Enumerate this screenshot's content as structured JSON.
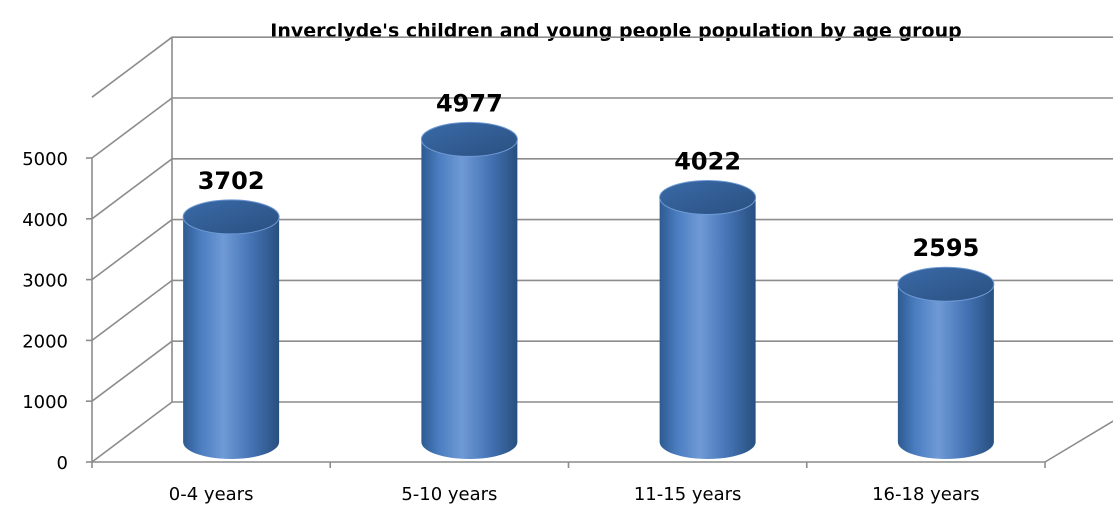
{
  "chart_data": {
    "type": "bar",
    "style": "3d-cylinder",
    "title": "Inverclyde's children and young people population by age group",
    "categories": [
      "0-4 years",
      "5-10 years",
      "11-15 years",
      "16-18 years"
    ],
    "values": [
      3702,
      4977,
      4022,
      2595
    ],
    "ylim": [
      0,
      5000
    ],
    "yticks": [
      0,
      1000,
      2000,
      3000,
      4000,
      5000
    ],
    "grid": true,
    "legend": "none",
    "colors": {
      "bar": "#4F81BD",
      "bar_dark": "#2F5A8C",
      "bar_light": "#7FA8DA",
      "grid": "#8c8c8c"
    }
  }
}
